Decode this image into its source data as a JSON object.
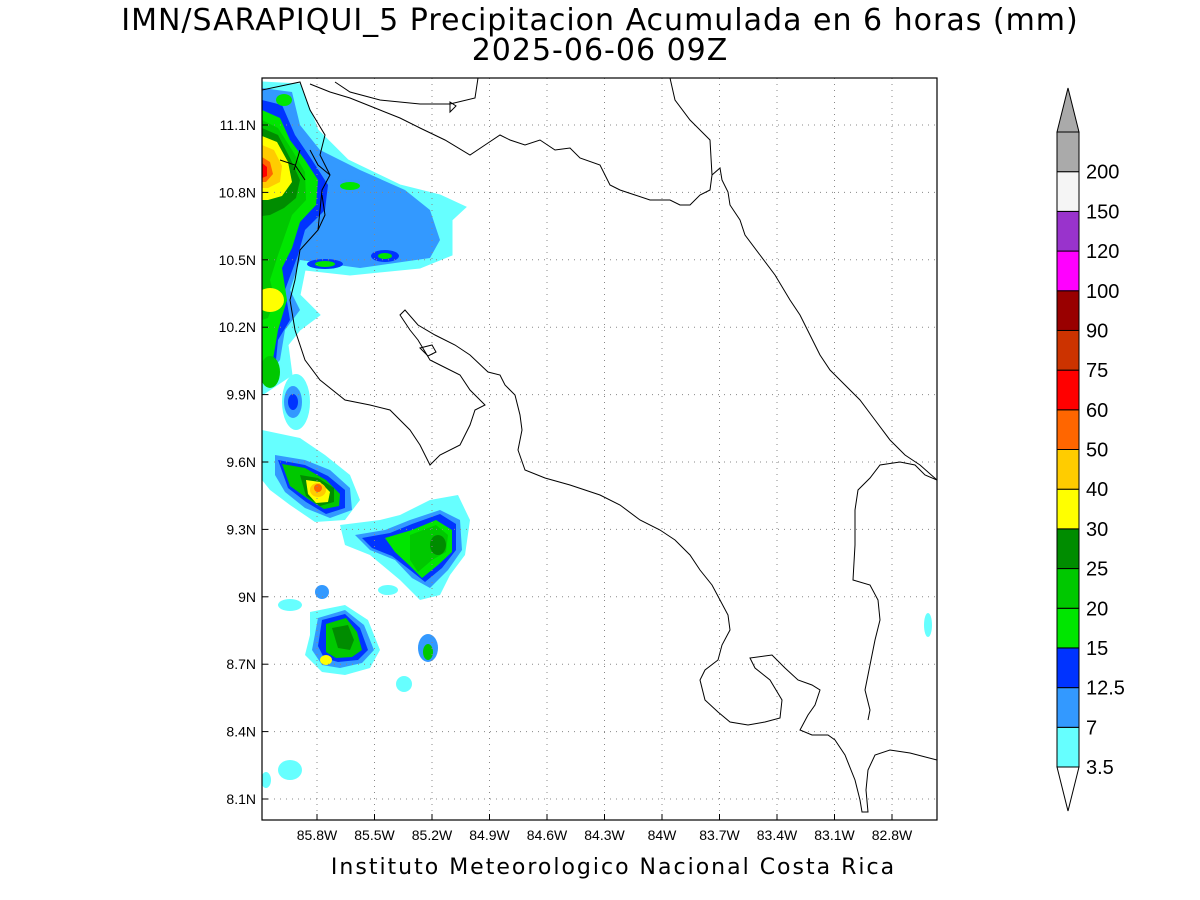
{
  "title_line1": "IMN/SARAPIQUI_5 Precipitacion Acumulada en 6 horas (mm)",
  "title_line2": "2025-06-06 09Z",
  "credit": "Instituto Meteorologico Nacional Costa Rica",
  "map": {
    "lon_range": [
      -86.0,
      -82.5
    ],
    "lat_range": [
      8.0,
      11.3
    ],
    "lon_ticks": [
      "85.8W",
      "85.5W",
      "85.2W",
      "84.9W",
      "84.6W",
      "84.3W",
      "84W",
      "83.7W",
      "83.4W",
      "83.1W",
      "82.8W"
    ],
    "lat_ticks": [
      "11.1N",
      "10.8N",
      "10.5N",
      "10.2N",
      "9.9N",
      "9.6N",
      "9.3N",
      "9N",
      "8.7N",
      "8.4N",
      "8.1N"
    ],
    "grid": "dotted"
  },
  "colorbar": {
    "labels": [
      "3.5",
      "7",
      "12.5",
      "15",
      "20",
      "25",
      "30",
      "40",
      "50",
      "60",
      "75",
      "90",
      "100",
      "120",
      "150",
      "200"
    ],
    "colors": [
      "#66ffff",
      "#3399ff",
      "#0033ff",
      "#00e600",
      "#00c800",
      "#008c00",
      "#ffff00",
      "#ffcc00",
      "#ff6600",
      "#ff0000",
      "#cc3300",
      "#990000",
      "#ff00ff",
      "#9933cc",
      "#f5f5f5",
      "#aaaaaa"
    ],
    "under_color": "#ffffff",
    "over_color": "#aaaaaa"
  }
}
